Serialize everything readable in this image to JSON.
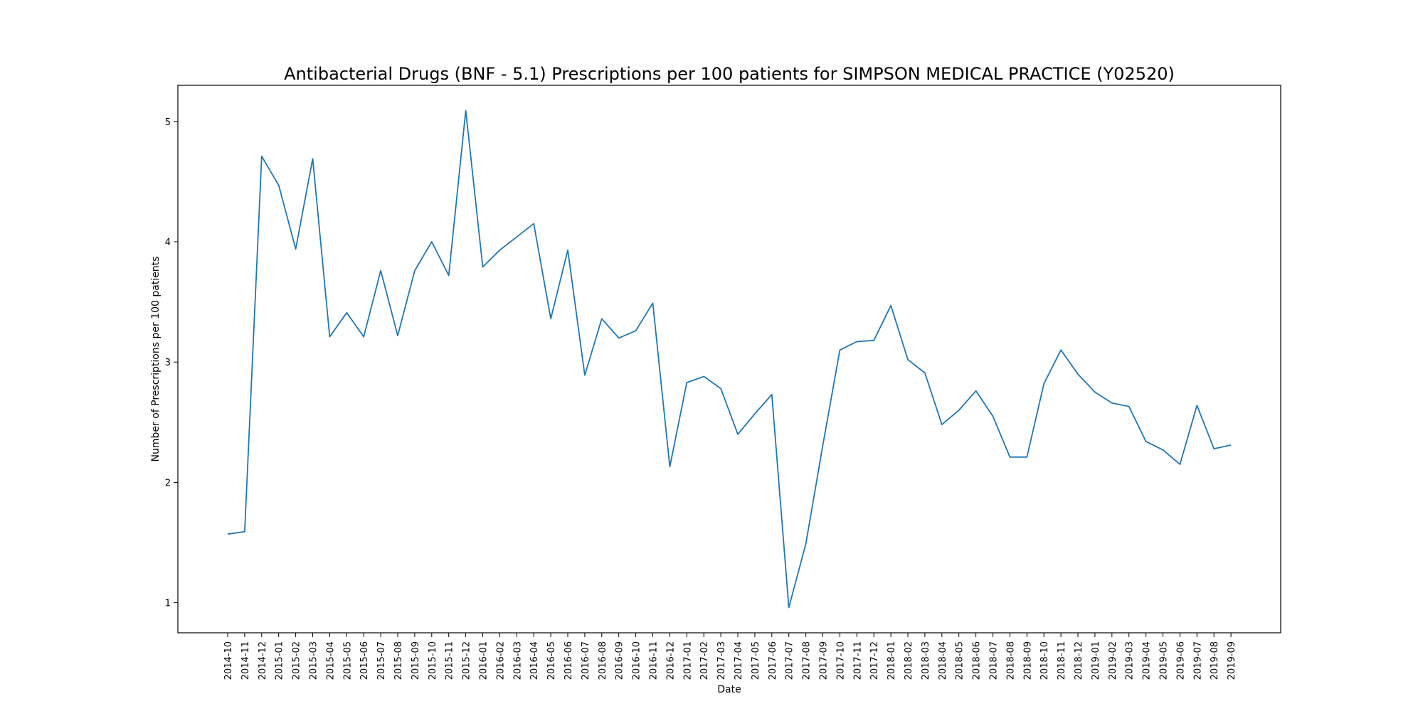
{
  "chart_data": {
    "type": "line",
    "title": "Antibacterial Drugs (BNF - 5.1) Prescriptions per 100 patients for SIMPSON MEDICAL PRACTICE (Y02520)",
    "xlabel": "Date",
    "ylabel": "Number of Prescriptions per 100 patients",
    "ylim": [
      0.75,
      5.3
    ],
    "yticks": [
      1,
      2,
      3,
      4,
      5
    ],
    "grid": false,
    "series_color": "#1f77b4",
    "categories": [
      "2014-10",
      "2014-11",
      "2014-12",
      "2015-01",
      "2015-02",
      "2015-03",
      "2015-04",
      "2015-05",
      "2015-06",
      "2015-07",
      "2015-08",
      "2015-09",
      "2015-10",
      "2015-11",
      "2015-12",
      "2016-01",
      "2016-02",
      "2016-03",
      "2016-04",
      "2016-05",
      "2016-06",
      "2016-07",
      "2016-08",
      "2016-09",
      "2016-10",
      "2016-11",
      "2016-12",
      "2017-01",
      "2017-02",
      "2017-03",
      "2017-04",
      "2017-05",
      "2017-06",
      "2017-07",
      "2017-08",
      "2017-09",
      "2017-10",
      "2017-11",
      "2017-12",
      "2018-01",
      "2018-02",
      "2018-03",
      "2018-04",
      "2018-05",
      "2018-06",
      "2018-07",
      "2018-08",
      "2018-09",
      "2018-10",
      "2018-11",
      "2018-12",
      "2019-01",
      "2019-02",
      "2019-03",
      "2019-04",
      "2019-05",
      "2019-06",
      "2019-07",
      "2019-08",
      "2019-09"
    ],
    "values": [
      1.57,
      1.59,
      4.71,
      4.47,
      3.94,
      4.69,
      3.21,
      3.41,
      3.21,
      3.76,
      3.22,
      3.76,
      4.0,
      3.72,
      5.09,
      3.79,
      3.93,
      4.04,
      4.15,
      3.36,
      3.93,
      2.89,
      3.36,
      3.2,
      3.26,
      3.49,
      2.13,
      2.83,
      2.88,
      2.78,
      2.4,
      2.57,
      2.73,
      0.96,
      1.49,
      2.31,
      3.1,
      3.17,
      3.18,
      3.47,
      3.02,
      2.91,
      2.48,
      2.6,
      2.76,
      2.55,
      2.21,
      2.21,
      2.82,
      3.1,
      2.9,
      2.75,
      2.66,
      2.63,
      2.34,
      2.27,
      2.15,
      2.64,
      2.28,
      2.31
    ]
  }
}
